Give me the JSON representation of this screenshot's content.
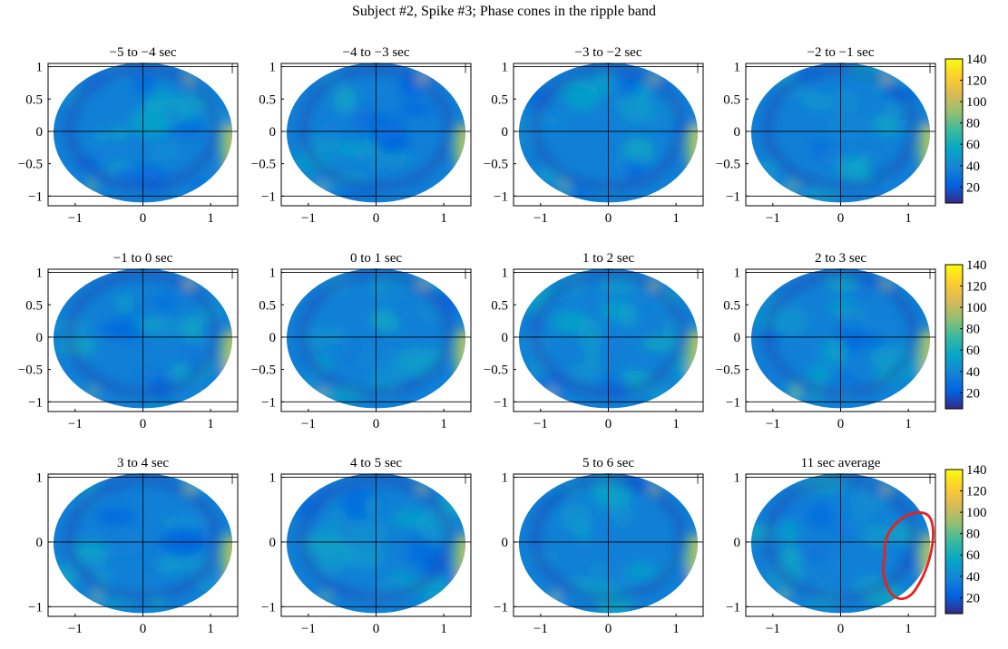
{
  "figure": {
    "suptitle": "Subject #2, Spike #3; Phase cones in the ripple band"
  },
  "colors": {
    "frame": "#000000",
    "annotation": "#e8201e",
    "parula": [
      "#352a87",
      "#0363e1",
      "#1485d4",
      "#06a7c6",
      "#38b99e",
      "#92bf73",
      "#d9ba56",
      "#fcce2e",
      "#f9fb0e"
    ]
  },
  "chart_data": [
    {
      "type": "heatmap",
      "title": "−5 to −4 sec",
      "xlim": [
        -1.4,
        1.4
      ],
      "ylim": [
        -1.15,
        1.05
      ],
      "xticks": [
        "−1",
        "0",
        "1"
      ],
      "yticks": [
        "1",
        "0.5",
        "0",
        "−0.5",
        "−1"
      ],
      "yticks_values": [
        1,
        0.5,
        0,
        -0.5,
        -1
      ],
      "colorbar": false,
      "grid": true,
      "value_range": [
        5,
        140
      ]
    },
    {
      "type": "heatmap",
      "title": "−4 to −3 sec",
      "xlim": [
        -1.4,
        1.4
      ],
      "ylim": [
        -1.15,
        1.05
      ],
      "xticks": [
        "−1",
        "0",
        "1"
      ],
      "yticks": [
        "1",
        "0.5",
        "0",
        "−0.5",
        "−1"
      ],
      "yticks_values": [
        1,
        0.5,
        0,
        -0.5,
        -1
      ],
      "colorbar": false,
      "grid": true,
      "value_range": [
        5,
        140
      ]
    },
    {
      "type": "heatmap",
      "title": "−3 to −2 sec",
      "xlim": [
        -1.4,
        1.4
      ],
      "ylim": [
        -1.15,
        1.05
      ],
      "xticks": [
        "−1",
        "0",
        "1"
      ],
      "yticks": [
        "1",
        "0.5",
        "0",
        "−0.5",
        "−1"
      ],
      "yticks_values": [
        1,
        0.5,
        0,
        -0.5,
        -1
      ],
      "colorbar": false,
      "grid": true,
      "value_range": [
        5,
        140
      ]
    },
    {
      "type": "heatmap",
      "title": "−2 to −1 sec",
      "xlim": [
        -1.4,
        1.4
      ],
      "ylim": [
        -1.15,
        1.05
      ],
      "xticks": [
        "−1",
        "0",
        "1"
      ],
      "yticks": [
        "1",
        "0.5",
        "0",
        "−0.5",
        "−1"
      ],
      "yticks_values": [
        1,
        0.5,
        0,
        -0.5,
        -1
      ],
      "colorbar": true,
      "colorbar_ticks": [
        "140",
        "120",
        "100",
        "80",
        "60",
        "40",
        "20"
      ],
      "colorbar_ticks_values": [
        140,
        120,
        100,
        80,
        60,
        40,
        20
      ],
      "grid": true,
      "value_range": [
        5,
        140
      ]
    },
    {
      "type": "heatmap",
      "title": "−1 to 0 sec",
      "xlim": [
        -1.4,
        1.4
      ],
      "ylim": [
        -1.15,
        1.05
      ],
      "xticks": [
        "−1",
        "0",
        "1"
      ],
      "yticks": [
        "1",
        "0.5",
        "0",
        "−0.5",
        "−1"
      ],
      "yticks_values": [
        1,
        0.5,
        0,
        -0.5,
        -1
      ],
      "colorbar": false,
      "grid": true,
      "value_range": [
        5,
        140
      ]
    },
    {
      "type": "heatmap",
      "title": "0 to 1 sec",
      "xlim": [
        -1.4,
        1.4
      ],
      "ylim": [
        -1.15,
        1.05
      ],
      "xticks": [
        "−1",
        "0",
        "1"
      ],
      "yticks": [
        "1",
        "0.5",
        "0",
        "−0.5",
        "−1"
      ],
      "yticks_values": [
        1,
        0.5,
        0,
        -0.5,
        -1
      ],
      "colorbar": false,
      "grid": true,
      "value_range": [
        5,
        140
      ]
    },
    {
      "type": "heatmap",
      "title": "1 to 2 sec",
      "xlim": [
        -1.4,
        1.4
      ],
      "ylim": [
        -1.15,
        1.05
      ],
      "xticks": [
        "−1",
        "0",
        "1"
      ],
      "yticks": [
        "1",
        "0.5",
        "0",
        "−0.5",
        "−1"
      ],
      "yticks_values": [
        1,
        0.5,
        0,
        -0.5,
        -1
      ],
      "colorbar": false,
      "grid": true,
      "value_range": [
        5,
        140
      ]
    },
    {
      "type": "heatmap",
      "title": "2 to 3 sec",
      "xlim": [
        -1.4,
        1.4
      ],
      "ylim": [
        -1.15,
        1.05
      ],
      "xticks": [
        "−1",
        "0",
        "1"
      ],
      "yticks": [
        "1",
        "0.5",
        "0",
        "−0.5",
        "−1"
      ],
      "yticks_values": [
        1,
        0.5,
        0,
        -0.5,
        -1
      ],
      "colorbar": true,
      "colorbar_ticks": [
        "140",
        "120",
        "100",
        "80",
        "60",
        "40",
        "20"
      ],
      "colorbar_ticks_values": [
        140,
        120,
        100,
        80,
        60,
        40,
        20
      ],
      "grid": true,
      "value_range": [
        5,
        140
      ]
    },
    {
      "type": "heatmap",
      "title": "3 to 4 sec",
      "xlim": [
        -1.4,
        1.4
      ],
      "ylim": [
        -1.15,
        1.05
      ],
      "xticks": [
        "−1",
        "0",
        "1"
      ],
      "yticks": [
        "1",
        "0",
        "−1"
      ],
      "yticks_values": [
        1,
        0,
        -1
      ],
      "colorbar": false,
      "grid": true,
      "value_range": [
        5,
        140
      ]
    },
    {
      "type": "heatmap",
      "title": "4 to 5 sec",
      "xlim": [
        -1.4,
        1.4
      ],
      "ylim": [
        -1.15,
        1.05
      ],
      "xticks": [
        "−1",
        "0",
        "1"
      ],
      "yticks": [
        "1",
        "0",
        "−1"
      ],
      "yticks_values": [
        1,
        0,
        -1
      ],
      "colorbar": false,
      "grid": true,
      "value_range": [
        5,
        140
      ]
    },
    {
      "type": "heatmap",
      "title": "5 to 6 sec",
      "xlim": [
        -1.4,
        1.4
      ],
      "ylim": [
        -1.15,
        1.05
      ],
      "xticks": [
        "−1",
        "0",
        "1"
      ],
      "yticks": [
        "1",
        "0",
        "−1"
      ],
      "yticks_values": [
        1,
        0,
        -1
      ],
      "colorbar": false,
      "grid": true,
      "value_range": [
        5,
        140
      ]
    },
    {
      "type": "heatmap",
      "title": "11 sec average",
      "xlim": [
        -1.4,
        1.4
      ],
      "ylim": [
        -1.15,
        1.05
      ],
      "xticks": [
        "−1",
        "0",
        "1"
      ],
      "yticks": [
        "1",
        "0",
        "−1"
      ],
      "yticks_values": [
        1,
        0,
        -1
      ],
      "colorbar": true,
      "colorbar_ticks": [
        "140",
        "120",
        "100",
        "80",
        "60",
        "40",
        "20"
      ],
      "colorbar_ticks_values": [
        140,
        120,
        100,
        80,
        60,
        40,
        20
      ],
      "grid": true,
      "value_range": [
        5,
        140
      ],
      "annotation": "red-outline",
      "annotation_center": [
        0.95,
        -0.25
      ]
    }
  ]
}
